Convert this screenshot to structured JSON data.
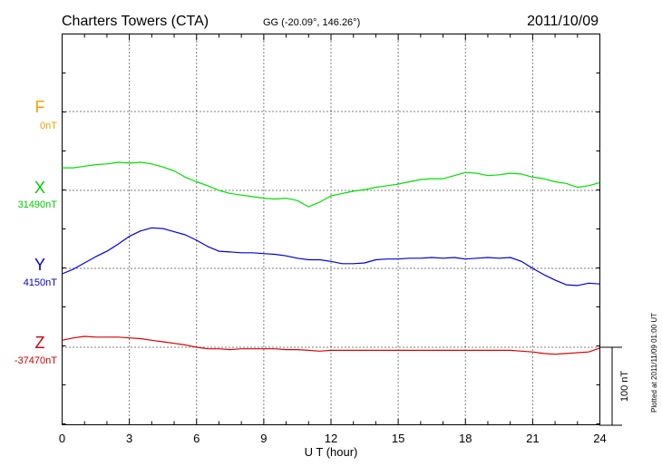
{
  "header": {
    "station": "Charters Towers (CTA)",
    "coords": "GG (-20.09°, 146.26°)",
    "date": "2011/10/09"
  },
  "axis": {
    "xlabel": "U T (hour)",
    "xticks": [
      "0",
      "3",
      "6",
      "9",
      "12",
      "15",
      "18",
      "21",
      "24"
    ]
  },
  "scale_bar": {
    "label": "100 nT"
  },
  "footer_note": "Plotted at 2011/11/09 01:00 UT",
  "components": [
    {
      "letter": "F",
      "baseline": "0nT",
      "color": "#f2a000"
    },
    {
      "letter": "X",
      "baseline": "31490nT",
      "color": "#00cc00"
    },
    {
      "letter": "Y",
      "baseline": "4150nT",
      "color": "#0000cc"
    },
    {
      "letter": "Z",
      "baseline": "-37470nT",
      "color": "#cc0000"
    }
  ],
  "chart_data": {
    "type": "line",
    "xlim": [
      0,
      24
    ],
    "xlabel": "U T (hour)",
    "grid": true,
    "unit": "nT",
    "series": [
      {
        "name": "X",
        "color": "#00e000",
        "baseline_nT": 31490,
        "x": [
          0,
          0.5,
          1,
          1.5,
          2,
          2.5,
          3,
          3.5,
          4,
          4.5,
          5,
          5.5,
          6,
          6.5,
          7,
          7.5,
          8,
          8.5,
          9,
          9.5,
          10,
          10.5,
          11,
          11.5,
          12,
          12.5,
          13,
          13.5,
          14,
          14.5,
          15,
          15.5,
          16,
          16.5,
          17,
          17.5,
          18,
          18.5,
          19,
          19.5,
          20,
          20.5,
          21,
          21.5,
          22,
          22.5,
          23,
          23.5,
          24
        ],
        "y": [
          29,
          29,
          31,
          33,
          34,
          36,
          35,
          36,
          34,
          30,
          25,
          17,
          11,
          6,
          0,
          -4,
          -6,
          -8,
          -10,
          -11,
          -10,
          -13,
          -21,
          -15,
          -7,
          -4,
          -1,
          1,
          4,
          6,
          8,
          11,
          14,
          15,
          15,
          19,
          23,
          22,
          19,
          20,
          22,
          21,
          17,
          15,
          11,
          9,
          4,
          6,
          10
        ]
      },
      {
        "name": "Y",
        "color": "#0000dd",
        "baseline_nT": 4150,
        "x": [
          0,
          0.5,
          1,
          1.5,
          2,
          2.5,
          3,
          3.5,
          4,
          4.5,
          5,
          5.5,
          6,
          6.5,
          7,
          7.5,
          8,
          8.5,
          9,
          9.5,
          10,
          10.5,
          11,
          11.5,
          12,
          12.5,
          13,
          13.5,
          14,
          14.5,
          15,
          15.5,
          16,
          16.5,
          17,
          17.5,
          18,
          18.5,
          19,
          19.5,
          20,
          20.5,
          21,
          21.5,
          22,
          22.5,
          23,
          23.5,
          24
        ],
        "y": [
          -7,
          -1,
          7,
          15,
          22,
          31,
          41,
          48,
          52,
          51,
          47,
          43,
          36,
          28,
          22,
          21,
          20,
          20,
          19,
          18,
          16,
          13,
          11,
          11,
          9,
          6,
          6,
          7,
          11,
          12,
          12,
          13,
          13,
          14,
          13,
          14,
          12,
          13,
          14,
          13,
          14,
          9,
          0,
          -8,
          -15,
          -21,
          -22,
          -19,
          -20
        ]
      },
      {
        "name": "Z",
        "color": "#dd0000",
        "baseline_nT": -37470,
        "x": [
          0,
          0.5,
          1,
          1.5,
          2,
          2.5,
          3,
          3.5,
          4,
          4.5,
          5,
          5.5,
          6,
          6.5,
          7,
          7.5,
          8,
          8.5,
          9,
          9.5,
          10,
          10.5,
          11,
          11.5,
          12,
          12.5,
          13,
          13.5,
          14,
          14.5,
          15,
          15.5,
          16,
          16.5,
          17,
          17.5,
          18,
          18.5,
          19,
          19.5,
          20,
          20.5,
          21,
          21.5,
          22,
          22.5,
          23,
          23.5,
          24
        ],
        "y": [
          9,
          12,
          14,
          13,
          13,
          13,
          12,
          11,
          9,
          7,
          5,
          3,
          0,
          -2,
          -2,
          -3,
          -2,
          -2,
          -2,
          -2,
          -3,
          -3,
          -4,
          -5,
          -4,
          -4,
          -4,
          -4,
          -4,
          -4,
          -4,
          -4,
          -4,
          -4,
          -4,
          -4,
          -4,
          -4,
          -4,
          -4,
          -4,
          -5,
          -6,
          -8,
          -9,
          -8,
          -7,
          -6,
          -1
        ]
      }
    ]
  }
}
